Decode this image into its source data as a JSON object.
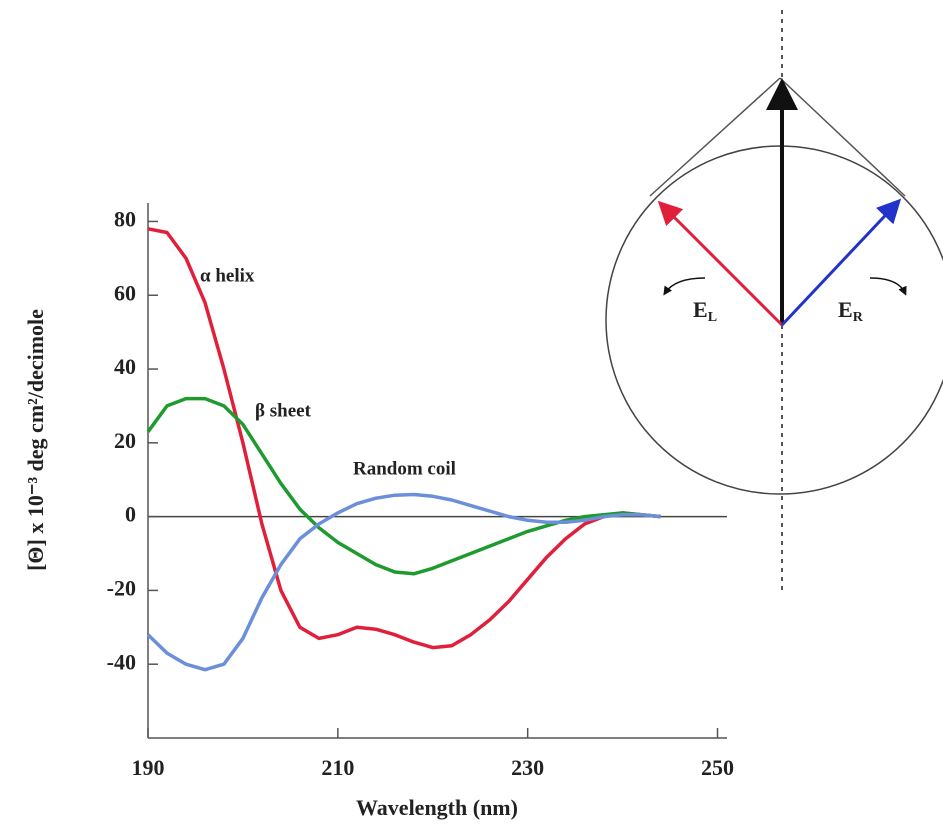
{
  "chart_data": {
    "type": "line",
    "x_label": "Wavelength (nm)",
    "y_label": "[Θ] x 10⁻³ deg cm²/decimole",
    "x": [
      190,
      192,
      194,
      196,
      198,
      200,
      202,
      204,
      206,
      208,
      210,
      212,
      214,
      216,
      218,
      220,
      222,
      224,
      226,
      228,
      230,
      232,
      234,
      236,
      238,
      240,
      242,
      244
    ],
    "series": [
      {
        "name": "α helix",
        "color": "#e0203a",
        "values": [
          78,
          77,
          70,
          58,
          40,
          20,
          -2,
          -20,
          -30,
          -33,
          -32,
          -30,
          -30.5,
          -32,
          -34,
          -35.5,
          -35,
          -32,
          -28,
          -23,
          -17,
          -11,
          -6,
          -2,
          0,
          1,
          0.5,
          0
        ]
      },
      {
        "name": "β sheet",
        "color": "#1f9a2f",
        "values": [
          23,
          30,
          32,
          32,
          30,
          25,
          17,
          9,
          2,
          -3,
          -7,
          -10,
          -13,
          -15,
          -15.5,
          -14,
          -12,
          -10,
          -8,
          -6,
          -4,
          -2.5,
          -1,
          0,
          0.5,
          1,
          0.5,
          0
        ]
      },
      {
        "name": "Random coil",
        "color": "#6b8fd8",
        "values": [
          -32,
          -37,
          -40,
          -41.5,
          -40,
          -33,
          -22,
          -13,
          -6,
          -2,
          1,
          3.5,
          5,
          5.8,
          6,
          5.5,
          4.5,
          3,
          1.5,
          0,
          -1,
          -1.5,
          -1.5,
          -1,
          0,
          0.5,
          0.5,
          0
        ]
      }
    ],
    "xlim": [
      190,
      251
    ],
    "xticks": [
      190,
      210,
      230,
      250
    ],
    "ylim": [
      -60,
      85
    ],
    "yticks": [
      -40,
      -20,
      0,
      20,
      40,
      60,
      80
    ]
  },
  "diagram": {
    "left_vector": {
      "main": "E",
      "sub": "L"
    },
    "right_vector": {
      "main": "E",
      "sub": "R"
    }
  }
}
